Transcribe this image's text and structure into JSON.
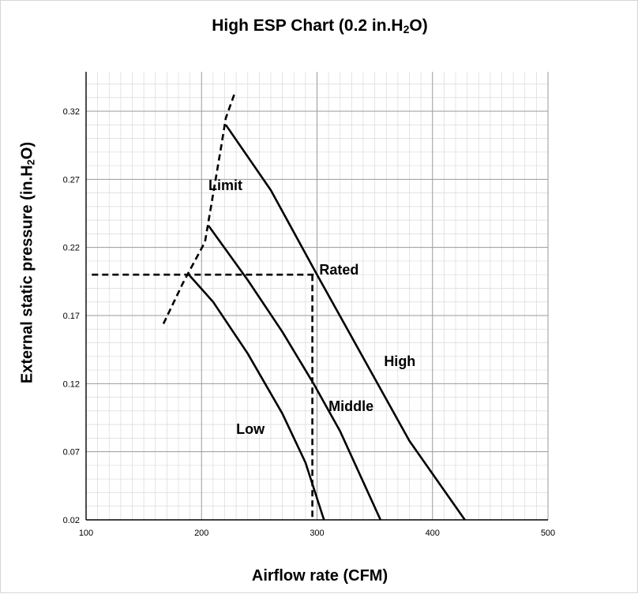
{
  "chart_data": {
    "type": "line",
    "title_main": "High ESP Chart (0.2 in.H",
    "title_sub": "2",
    "title_end": "O)",
    "xlabel": "Airflow rate (CFM)",
    "ylabel_main": "External  static pressure (in.H",
    "ylabel_sub": "2",
    "ylabel_end": "O)",
    "xlim": [
      100,
      500
    ],
    "ylim": [
      0.02,
      0.32
    ],
    "x_ticks": [
      "100",
      "200",
      "300",
      "400",
      "500"
    ],
    "y_ticks": [
      "0.02",
      "0.07",
      "0.12",
      "0.17",
      "0.22",
      "0.27",
      "0.32"
    ],
    "grid": true,
    "series": [
      {
        "name": "High",
        "style": "solid",
        "points": [
          [
            221,
            0.31
          ],
          [
            260,
            0.262
          ],
          [
            300,
            0.2
          ],
          [
            340,
            0.139
          ],
          [
            380,
            0.078
          ],
          [
            428,
            0.02
          ]
        ]
      },
      {
        "name": "Middle",
        "style": "solid",
        "points": [
          [
            206,
            0.236
          ],
          [
            240,
            0.196
          ],
          [
            270,
            0.158
          ],
          [
            297,
            0.12
          ],
          [
            320,
            0.085
          ],
          [
            355,
            0.02
          ]
        ]
      },
      {
        "name": "Low",
        "style": "solid",
        "points": [
          [
            189,
            0.2
          ],
          [
            210,
            0.18
          ],
          [
            240,
            0.142
          ],
          [
            270,
            0.098
          ],
          [
            290,
            0.062
          ],
          [
            306,
            0.02
          ]
        ]
      },
      {
        "name": "Limit",
        "style": "dashed",
        "points": [
          [
            167,
            0.164
          ],
          [
            184,
            0.194
          ],
          [
            203,
            0.224
          ],
          [
            209,
            0.254
          ],
          [
            217,
            0.294
          ],
          [
            221,
            0.315
          ],
          [
            229,
            0.334
          ]
        ]
      }
    ],
    "reference_lines": [
      {
        "style": "dashed",
        "points": [
          [
            105,
            0.2
          ],
          [
            300,
            0.2
          ]
        ]
      },
      {
        "style": "dashed",
        "points": [
          [
            296,
            0.2
          ],
          [
            296,
            0.02
          ]
        ]
      }
    ],
    "annotations": [
      {
        "text": "Limit",
        "x": 206,
        "y": 0.262
      },
      {
        "text": "Rated",
        "x": 302,
        "y": 0.2
      },
      {
        "text": "High",
        "x": 358,
        "y": 0.133
      },
      {
        "text": "Middle",
        "x": 310,
        "y": 0.1
      },
      {
        "text": "Low",
        "x": 230,
        "y": 0.083
      }
    ],
    "colors": {
      "line": "#000000",
      "grid_major": "#9a9a9a",
      "grid_minor": "#dadada"
    }
  }
}
